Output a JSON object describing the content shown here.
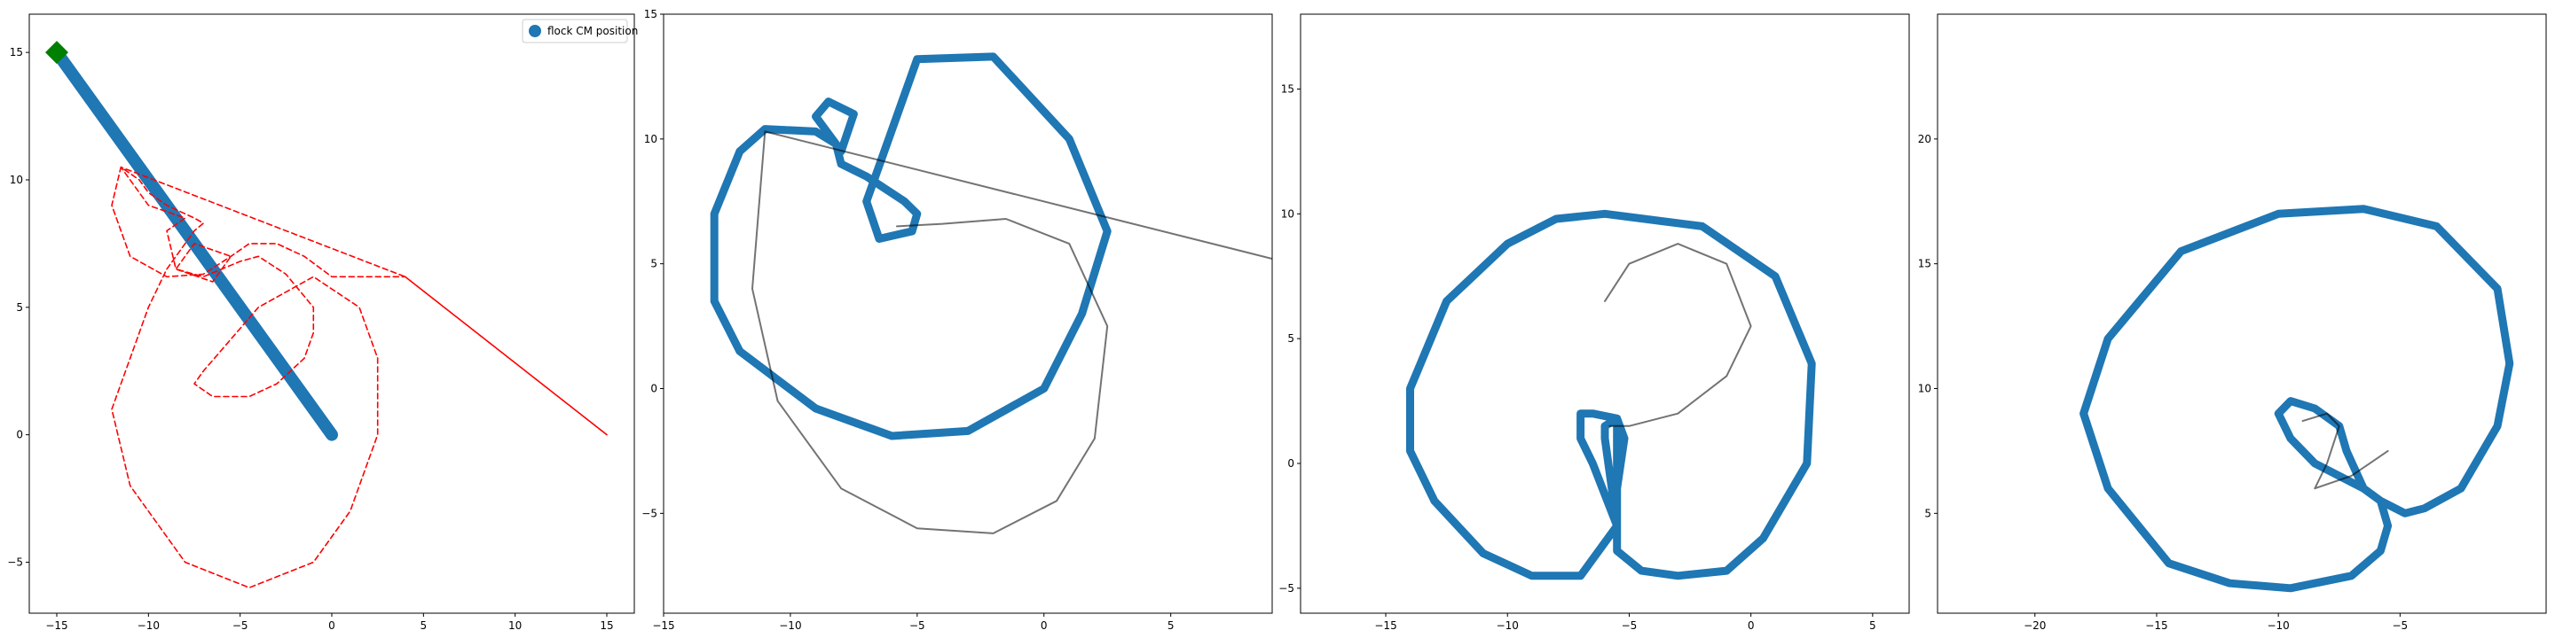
{
  "colors": {
    "cm_path": "#1f77b4",
    "start_marker": "#008000",
    "dashed": "#ff0000",
    "trail": "#000000"
  },
  "chart_data": [
    {
      "type": "line",
      "xlim": [
        -16.5,
        16.5
      ],
      "ylim": [
        -7,
        16.5
      ],
      "xticks": [
        -15,
        -10,
        -5,
        0,
        5,
        10,
        15
      ],
      "yticks": [
        -5,
        0,
        5,
        10,
        15
      ],
      "legend": {
        "label": "flock CM position",
        "placement": "top-right"
      },
      "series": [
        {
          "style": "thick",
          "x": [
            -15,
            0
          ],
          "y": [
            15,
            0
          ]
        },
        {
          "style": "diamond-marker",
          "x": [
            -15
          ],
          "y": [
            15
          ]
        },
        {
          "style": "dashed",
          "x": [
            15,
            4,
            -11.5,
            -10,
            -8,
            -9,
            -8.5,
            -6.5,
            -5.5,
            -7.5,
            -8.5,
            -7,
            -5,
            -4,
            -2.5,
            -1,
            -1,
            -1.5,
            -3,
            -4.5,
            -6.5,
            -7.5,
            -7,
            -4,
            -1,
            1.5,
            2.5,
            2.5,
            1,
            -1,
            -4.5,
            -8,
            -11,
            -12,
            -11,
            -10,
            -9,
            -7.5,
            -7,
            -7.5,
            -9,
            -10,
            -10.5,
            -11.5,
            -12,
            -11,
            -9,
            -7,
            -5.5,
            -4.5,
            -3,
            -1.5,
            0,
            4,
            15
          ],
          "y": [
            0,
            6.2,
            10.5,
            9,
            8.5,
            8,
            6.5,
            6,
            7,
            7.5,
            6.5,
            6.2,
            6.8,
            7,
            6.3,
            5,
            4,
            3,
            2,
            1.5,
            1.5,
            2,
            2.5,
            5,
            6.2,
            5,
            3,
            0,
            -3,
            -5,
            -6,
            -5,
            -2,
            1,
            3,
            5,
            6.5,
            8,
            8.3,
            8.5,
            9,
            9.5,
            10,
            10.5,
            9,
            7,
            6.2,
            6.3,
            7,
            7.5,
            7.5,
            7,
            6.2,
            6.2,
            0
          ]
        }
      ]
    },
    {
      "type": "line",
      "xlim": [
        -15,
        9
      ],
      "ylim": [
        -9,
        15
      ],
      "xticks": [
        -15,
        -10,
        -5,
        0,
        5
      ],
      "yticks": [
        -5,
        0,
        5,
        10,
        15
      ],
      "series": [
        {
          "style": "thick",
          "closed": true,
          "x": [
            -8.2,
            -8.0,
            -7.0,
            -5.5,
            -5.0,
            -5.2,
            -6.5,
            -7.0,
            -5.0,
            -2.0,
            1.0,
            2.5,
            1.5,
            0.0,
            -3.0,
            -6.0,
            -9.0,
            -12.0,
            -13.0,
            -13.0,
            -12.0,
            -11.0,
            -9.0,
            -8.2,
            -8.0,
            -7.5,
            -8.5,
            -9.0,
            -8.2
          ],
          "y": [
            9.8,
            9.0,
            8.5,
            7.5,
            7.0,
            6.3,
            6.0,
            7.5,
            13.2,
            13.3,
            10.0,
            6.3,
            3.0,
            0.0,
            -1.7,
            -1.9,
            -0.8,
            1.5,
            3.5,
            7.0,
            9.5,
            10.4,
            10.3,
            9.8,
            9.5,
            11.0,
            11.5,
            10.9,
            9.8
          ]
        },
        {
          "style": "trail",
          "x": [
            -5.8,
            -4.0,
            -1.5,
            1.0,
            2.5,
            2.0,
            0.5,
            -2.0,
            -5.0,
            -8.0,
            -10.5,
            -11.5,
            -11.0,
            9.0
          ],
          "y": [
            6.5,
            6.6,
            6.8,
            5.8,
            2.5,
            -2.0,
            -4.5,
            -5.8,
            -5.6,
            -4.0,
            -0.5,
            4.0,
            10.3,
            5.2
          ]
        }
      ]
    },
    {
      "type": "line",
      "xlim": [
        -18.5,
        6.5
      ],
      "ylim": [
        -6,
        18
      ],
      "xticks": [
        -15,
        -10,
        -5,
        0,
        5
      ],
      "yticks": [
        -5,
        0,
        5,
        10,
        15
      ],
      "series": [
        {
          "style": "thick",
          "closed": true,
          "x": [
            -5.5,
            -6.5,
            -7.0,
            -7.0,
            -6.5,
            -5.5,
            -5.2,
            -5.5,
            -5.5,
            -7.0,
            -9.0,
            -11.0,
            -13.0,
            -14.0,
            -14.0,
            -12.5,
            -10.0,
            -8.0,
            -6.0,
            -2.0,
            1.0,
            2.5,
            2.3,
            0.5,
            -1.0,
            -3.0,
            -4.5,
            -5.5,
            -5.5,
            -6.0,
            -6.0,
            -5.5
          ],
          "y": [
            -2.5,
            0.0,
            1.0,
            2.0,
            2.0,
            1.8,
            1.0,
            -1.0,
            -2.5,
            -4.5,
            -4.5,
            -3.6,
            -1.5,
            0.5,
            3.0,
            6.5,
            8.8,
            9.8,
            10.0,
            9.5,
            7.5,
            4.0,
            0.0,
            -3.0,
            -4.3,
            -4.5,
            -4.3,
            -3.5,
            -2.5,
            1.0,
            1.5,
            1.8
          ]
        },
        {
          "style": "trail",
          "x": [
            -5.8,
            -5.0,
            -3.0,
            -1.0,
            0.0,
            -1.0,
            -3.0,
            -5.0,
            -6.0
          ],
          "y": [
            1.5,
            1.5,
            2.0,
            3.5,
            5.5,
            8.0,
            8.8,
            8.0,
            6.5
          ]
        }
      ]
    },
    {
      "type": "line",
      "xlim": [
        -24,
        1
      ],
      "ylim": [
        1,
        25
      ],
      "xticks": [
        -20,
        -15,
        -10,
        -5
      ],
      "yticks": [
        5,
        10,
        15,
        20
      ],
      "series": [
        {
          "style": "thick",
          "closed": true,
          "x": [
            -6.5,
            -7.5,
            -8.5,
            -9.5,
            -10.0,
            -9.5,
            -8.5,
            -7.5,
            -7.2,
            -6.5,
            -5.8,
            -4.8,
            -4.0,
            -2.5,
            -1.0,
            -0.5,
            -1.0,
            -3.5,
            -6.5,
            -10.0,
            -14.0,
            -17.0,
            -18.0,
            -17.0,
            -14.5,
            -12.0,
            -9.5,
            -7.0,
            -5.8,
            -5.5,
            -5.8,
            -6.5
          ],
          "y": [
            6.0,
            6.5,
            7.0,
            8.0,
            9.0,
            9.5,
            9.2,
            8.5,
            7.5,
            6.0,
            5.5,
            5.0,
            5.2,
            6.0,
            8.5,
            11.0,
            14.0,
            16.5,
            17.2,
            17.0,
            15.5,
            12.0,
            9.0,
            6.0,
            3.0,
            2.2,
            2.0,
            2.5,
            3.5,
            4.5,
            5.5,
            6.0
          ]
        },
        {
          "style": "trail",
          "x": [
            -9.0,
            -8.0,
            -7.5,
            -8.0,
            -8.5,
            -7.0,
            -5.5
          ],
          "y": [
            8.7,
            9.0,
            8.5,
            7.0,
            6.0,
            6.5,
            7.5
          ]
        }
      ]
    }
  ]
}
